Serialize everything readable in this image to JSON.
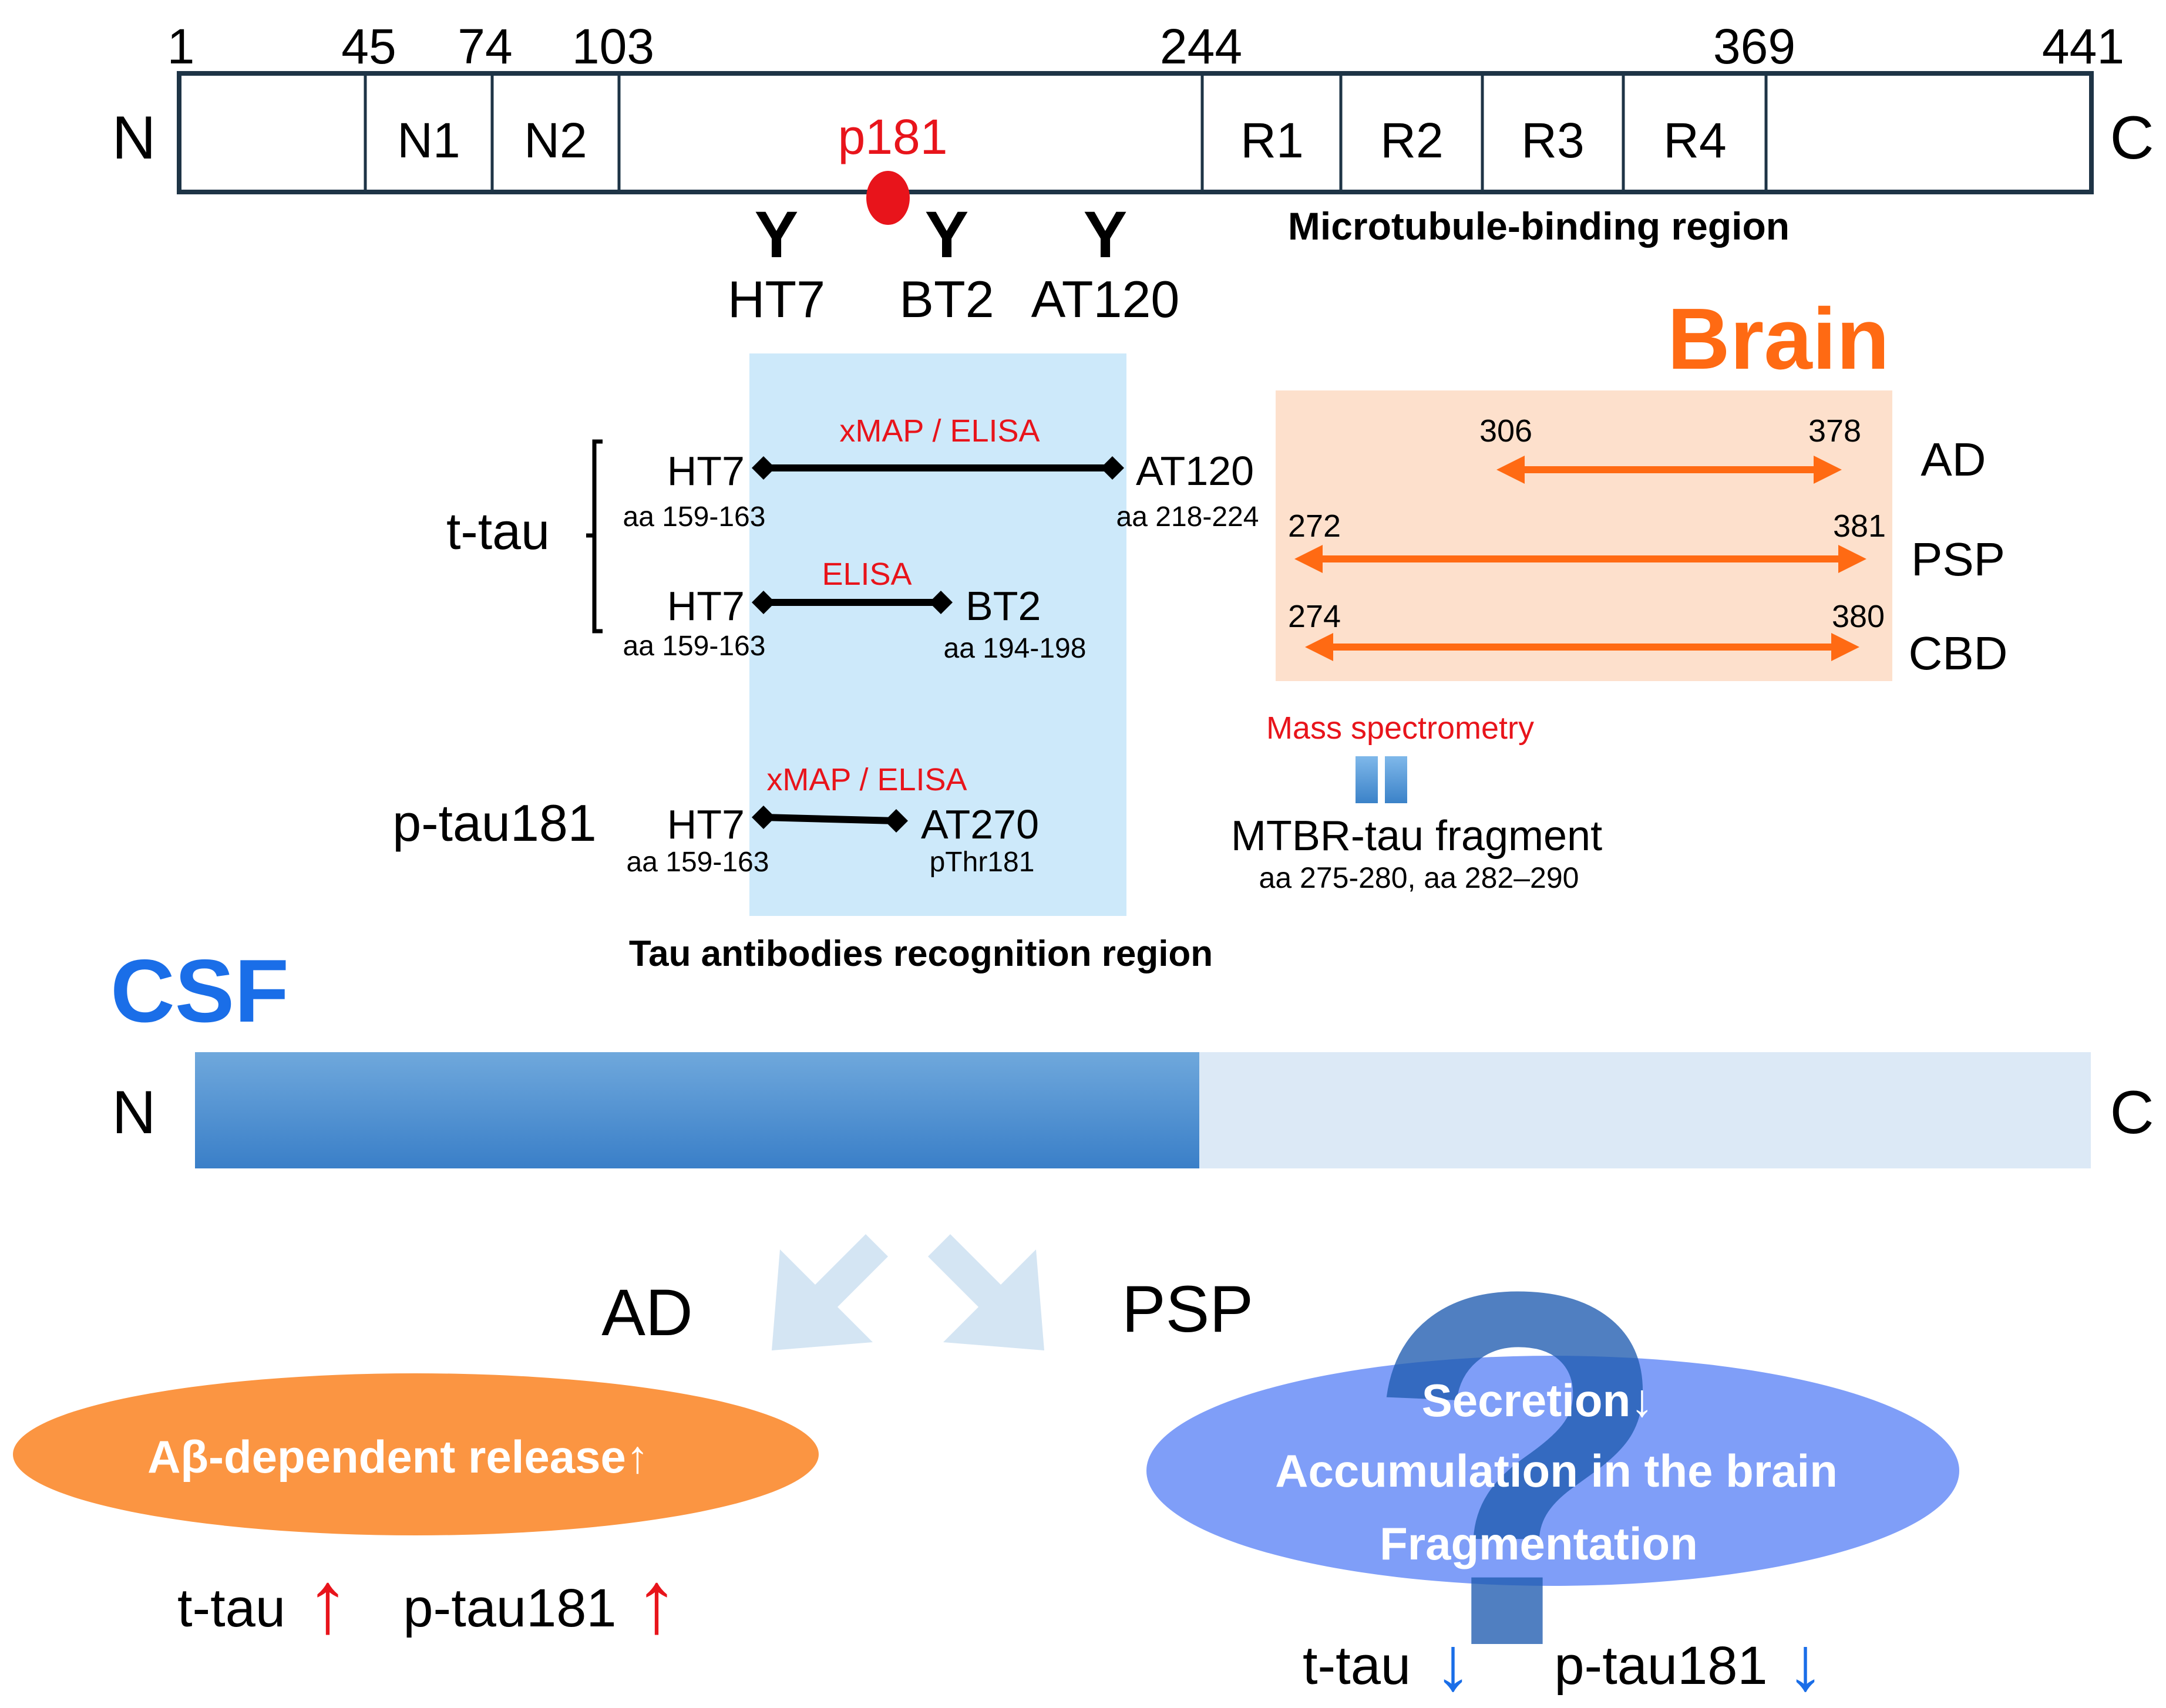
{
  "protein": {
    "n_label": "N",
    "c_label": "C",
    "positions": [
      "1",
      "45",
      "74",
      "103",
      "244",
      "369",
      "441"
    ],
    "domains": [
      "N1",
      "N2",
      "R1",
      "R2",
      "R3",
      "R4"
    ],
    "phospho_site": "p181",
    "mtbr_label": "Microtubule-binding region",
    "antibodies": [
      "HT7",
      "BT2",
      "AT120"
    ],
    "antibody_glyph": "Y"
  },
  "assays": {
    "recognition_label": "Tau antibodies recognition region",
    "ttau_label": "t-tau",
    "ptau_label": "p-tau181",
    "rows": [
      {
        "method": "xMAP / ELISA",
        "left_ab": "HT7",
        "left_range": "aa 159-163",
        "right_ab": "AT120",
        "right_range": "aa 218-224"
      },
      {
        "method": "ELISA",
        "left_ab": "HT7",
        "left_range": "aa 159-163",
        "right_ab": "BT2",
        "right_range": "aa 194-198"
      },
      {
        "method": "xMAP / ELISA",
        "left_ab": "HT7",
        "left_range": "aa 159-163",
        "right_ab": "AT270",
        "right_range": "pThr181"
      }
    ]
  },
  "brain": {
    "title": "Brain",
    "rows": [
      {
        "disease": "AD",
        "start": "306",
        "end": "378"
      },
      {
        "disease": "PSP",
        "start": "272",
        "end": "381"
      },
      {
        "disease": "CBD",
        "start": "274",
        "end": "380"
      }
    ],
    "method": "Mass spectrometry",
    "fragment_label": "MTBR-tau fragment",
    "fragment_range": "aa 275-280, aa 282–290"
  },
  "csf": {
    "title": "CSF",
    "n_label": "N",
    "c_label": "C"
  },
  "outcomes": {
    "ad": {
      "title": "AD",
      "mechanism": "Aβ-dependent release↑",
      "ttau": "t-tau",
      "ptau": "p-tau181",
      "arrow": "↑"
    },
    "psp": {
      "title": "PSP",
      "question_mark": "?",
      "mechanisms": [
        "Secretion↓",
        "Accumulation in the brain",
        "Fragmentation"
      ],
      "ttau": "t-tau",
      "ptau": "p-tau181",
      "arrow": "↓"
    }
  },
  "colors": {
    "orange": "#ff6a13",
    "red": "#e8141b",
    "blue": "#1a6ee8",
    "light_blue_box": "#cde9fa",
    "peach_box": "#fde0cc"
  }
}
